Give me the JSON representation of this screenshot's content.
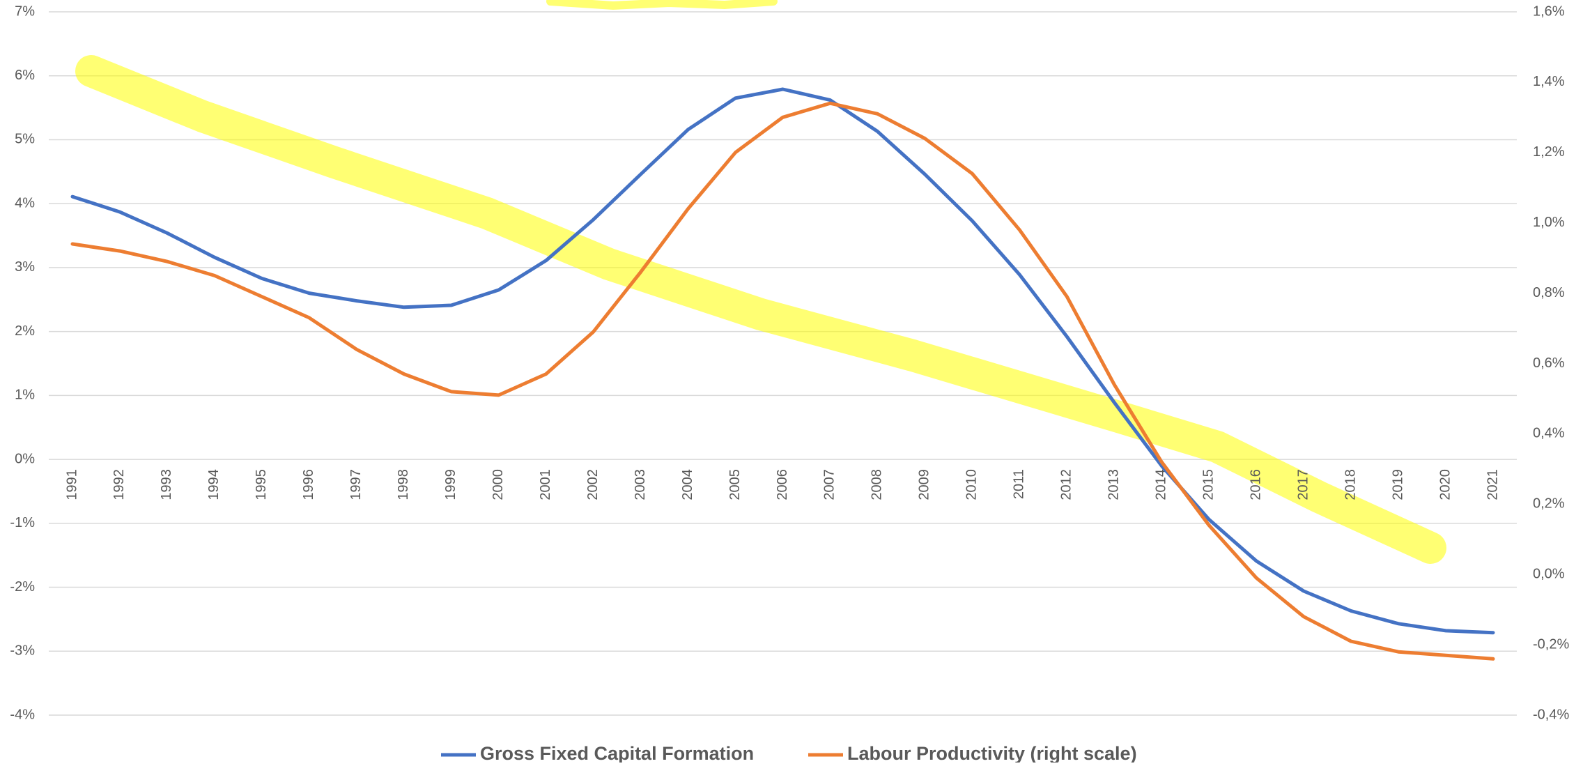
{
  "chart_data": {
    "type": "line",
    "categories": [
      "1991",
      "1992",
      "1993",
      "1994",
      "1995",
      "1996",
      "1997",
      "1998",
      "1999",
      "2000",
      "2001",
      "2002",
      "2003",
      "2004",
      "2005",
      "2006",
      "2007",
      "2008",
      "2009",
      "2010",
      "2011",
      "2012",
      "2013",
      "2014",
      "2015",
      "2016",
      "2017",
      "2018",
      "2019",
      "2020",
      "2021"
    ],
    "series": [
      {
        "name": "Gross Fixed Capital Formation",
        "color": "#4472c4",
        "values": [
          4.11,
          3.87,
          3.54,
          3.16,
          2.83,
          2.6,
          2.48,
          2.38,
          2.41,
          2.65,
          3.11,
          3.75,
          4.46,
          5.16,
          5.65,
          5.79,
          5.62,
          5.13,
          4.46,
          3.73,
          2.89,
          1.92,
          0.89,
          -0.1,
          -0.94,
          -1.59,
          -2.06,
          -2.37,
          -2.57,
          -2.68,
          -2.71
        ]
      },
      {
        "name": "Labour Productivity (right scale)",
        "color": "#ed7d31",
        "axis": "y2",
        "values": [
          0.94,
          0.92,
          0.89,
          0.85,
          0.79,
          0.73,
          0.64,
          0.57,
          0.52,
          0.51,
          0.57,
          0.69,
          0.86,
          1.04,
          1.2,
          1.3,
          1.34,
          1.31,
          1.24,
          1.14,
          0.98,
          0.79,
          0.54,
          0.32,
          0.14,
          -0.01,
          -0.12,
          -0.19,
          -0.22,
          -0.23,
          -0.24
        ]
      }
    ],
    "ylim": [
      -4,
      7
    ],
    "yticks": [
      {
        "value": -4,
        "label": "-4%"
      },
      {
        "value": -3,
        "label": "-3%"
      },
      {
        "value": -2,
        "label": "-2%"
      },
      {
        "value": -1,
        "label": "-1%"
      },
      {
        "value": 0,
        "label": "0%"
      },
      {
        "value": 1,
        "label": "1%"
      },
      {
        "value": 2,
        "label": "2%"
      },
      {
        "value": 3,
        "label": "3%"
      },
      {
        "value": 4,
        "label": "4%"
      },
      {
        "value": 5,
        "label": "5%"
      },
      {
        "value": 6,
        "label": "6%"
      },
      {
        "value": 7,
        "label": "7%"
      }
    ],
    "y2lim": [
      -0.4,
      1.6
    ],
    "y2ticks": [
      {
        "value": -0.4,
        "label": "-0,4%"
      },
      {
        "value": -0.2,
        "label": "-0,2%"
      },
      {
        "value": 0,
        "label": "0,0%"
      },
      {
        "value": 0.2,
        "label": "0,2%"
      },
      {
        "value": 0.4,
        "label": "0,4%"
      },
      {
        "value": 0.6,
        "label": "0,6%"
      },
      {
        "value": 0.8,
        "label": "0,8%"
      },
      {
        "value": 1,
        "label": "1,0%"
      },
      {
        "value": 1.2,
        "label": "1,2%"
      },
      {
        "value": 1.4,
        "label": "1,4%"
      },
      {
        "value": 1.6,
        "label": "1,6%"
      }
    ],
    "grid": true,
    "legend": "bottom"
  }
}
